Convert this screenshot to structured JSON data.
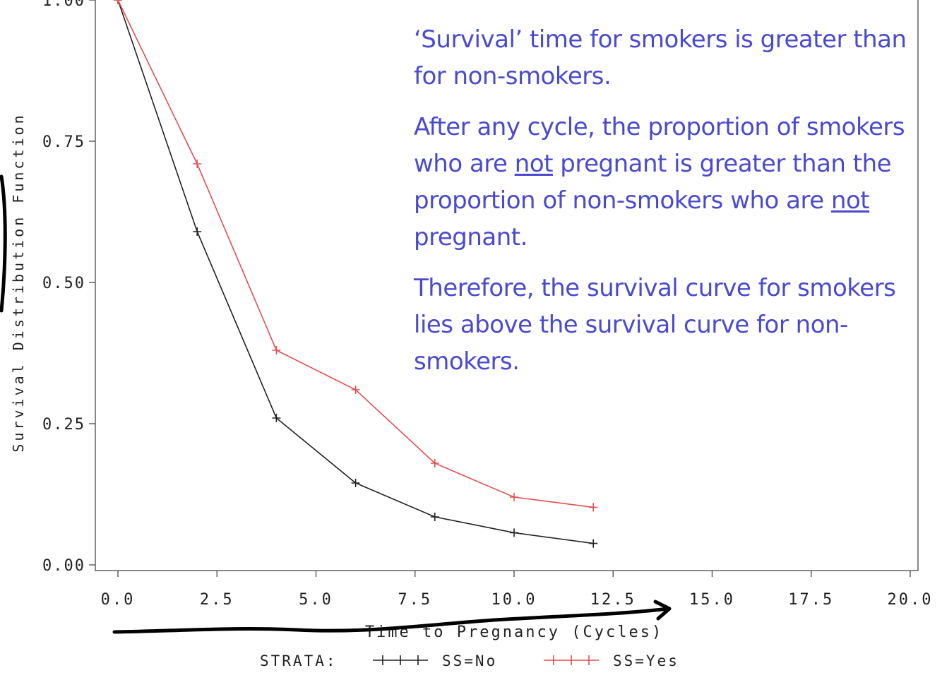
{
  "chart_data": {
    "type": "line",
    "xlabel": "Time to Pregnancy (Cycles)",
    "ylabel": "Survival Distribution Function",
    "xlim": [
      0,
      20
    ],
    "ylim": [
      0,
      1
    ],
    "x_ticks": [
      "0.0",
      "2.5",
      "5.0",
      "7.5",
      "10.0",
      "12.5",
      "15.0",
      "17.5",
      "20.0"
    ],
    "y_ticks": [
      "0.00",
      "0.25",
      "0.50",
      "0.75",
      "1.00"
    ],
    "grid": false,
    "legend": {
      "title": "STRATA:",
      "placement": "bottom",
      "entries": [
        "SS=No",
        "SS=Yes"
      ]
    },
    "series": [
      {
        "name": "SS=No",
        "color": "#222222",
        "x": [
          0,
          2,
          4,
          6,
          8,
          10,
          12
        ],
        "y": [
          1.0,
          0.59,
          0.26,
          0.145,
          0.085,
          0.057,
          0.038
        ]
      },
      {
        "name": "SS=Yes",
        "color": "#e05050",
        "x": [
          0,
          2,
          4,
          6,
          8,
          10,
          12
        ],
        "y": [
          1.0,
          0.71,
          0.38,
          0.31,
          0.18,
          0.12,
          0.102
        ]
      }
    ]
  },
  "annotation": {
    "p1": "‘Survival’ time for smokers is greater than for non-smokers.",
    "p2_a": "After any cycle, the proportion of smokers who are ",
    "p2_b": "not",
    "p2_c": " pregnant is greater than the proportion of non-smokers who are ",
    "p2_d": "not",
    "p2_e": " pregnant.",
    "p3": "Therefore, the survival curve for smokers lies above the survival curve for non-smokers."
  }
}
